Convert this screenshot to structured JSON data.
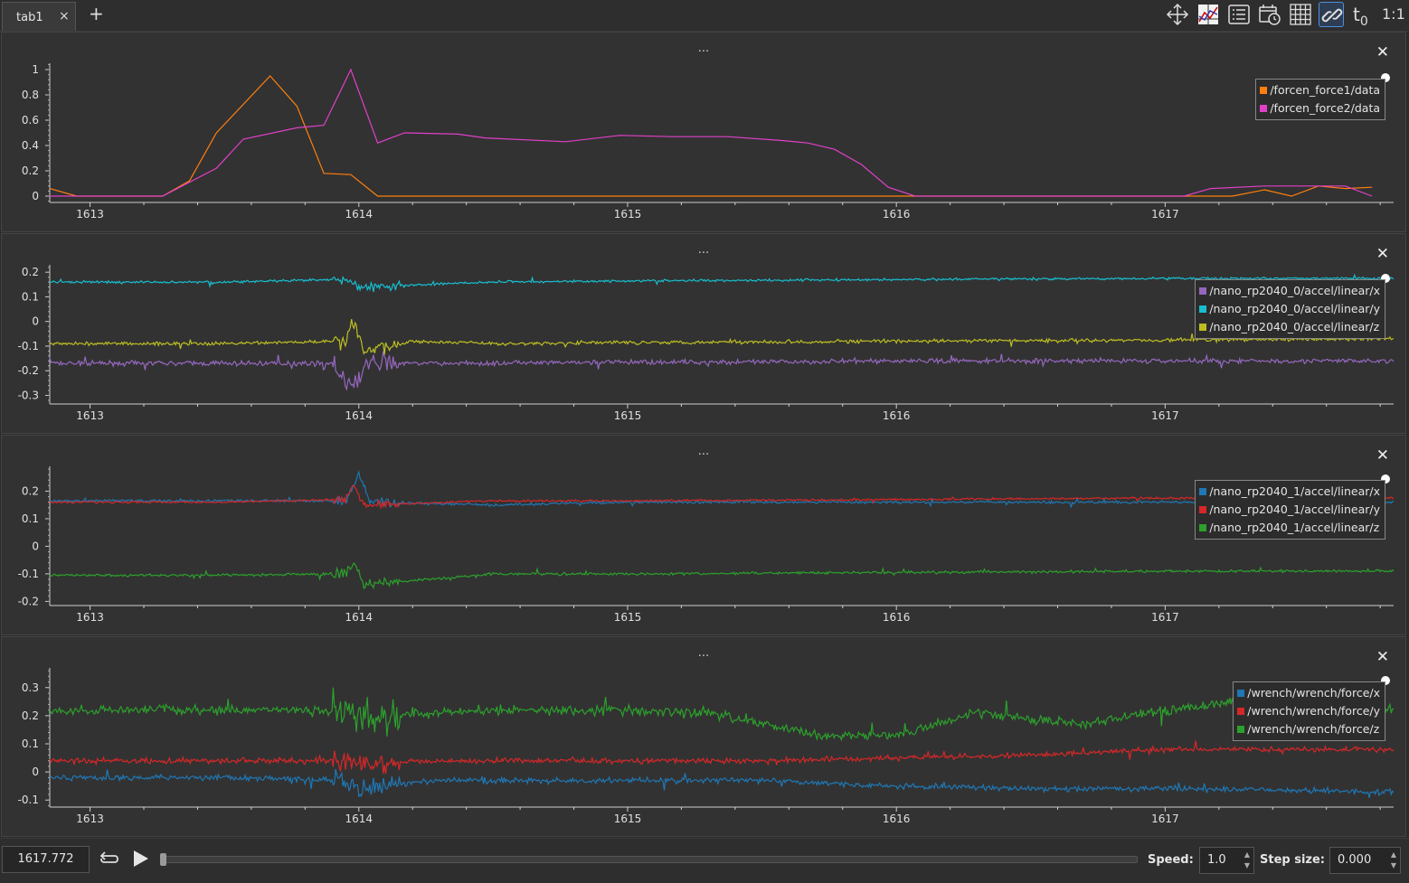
{
  "tab": {
    "label": "tab1",
    "close": "×",
    "add": "+"
  },
  "toolbar": {
    "icons": [
      "move-icon",
      "zoom-fit-icon",
      "list-icon",
      "calendar-clock-icon",
      "grid-icon",
      "link-icon"
    ],
    "time_offset_label": "t",
    "time_offset_sub": "0",
    "ratio_label": "1:1"
  },
  "panels": [
    {
      "menu": "...",
      "close": "✕",
      "legend": [
        {
          "label": "/forcen_force1/data",
          "color": "#ff7f0e"
        },
        {
          "label": "/forcen_force2/data",
          "color": "#e040c8"
        }
      ]
    },
    {
      "menu": "...",
      "close": "✕",
      "legend": [
        {
          "label": "/nano_rp2040_0/accel/linear/x",
          "color": "#9467bd"
        },
        {
          "label": "/nano_rp2040_0/accel/linear/y",
          "color": "#17becf"
        },
        {
          "label": "/nano_rp2040_0/accel/linear/z",
          "color": "#bcbd22"
        }
      ]
    },
    {
      "menu": "...",
      "close": "✕",
      "legend": [
        {
          "label": "/nano_rp2040_1/accel/linear/x",
          "color": "#1f77b4"
        },
        {
          "label": "/nano_rp2040_1/accel/linear/y",
          "color": "#d62728"
        },
        {
          "label": "/nano_rp2040_1/accel/linear/z",
          "color": "#2ca02c"
        }
      ]
    },
    {
      "menu": "...",
      "close": "✕",
      "legend": [
        {
          "label": "/wrench/wrench/force/x",
          "color": "#1f77b4"
        },
        {
          "label": "/wrench/wrench/force/y",
          "color": "#d62728"
        },
        {
          "label": "/wrench/wrench/force/z",
          "color": "#2ca02c"
        }
      ]
    }
  ],
  "chart_data": [
    {
      "type": "line",
      "xlim": [
        1612.85,
        1617.85
      ],
      "ylim": [
        -0.05,
        1.05
      ],
      "xticks": [
        1613,
        1614,
        1615,
        1616,
        1617
      ],
      "yticks": [
        0,
        0.2,
        0.4,
        0.6,
        0.8,
        1
      ],
      "ytick_labels": [
        "0",
        "0.2",
        "0.4",
        "0.6",
        "0.8",
        "1"
      ],
      "series": [
        {
          "name": "/forcen_force1/data",
          "color": "#ff7f0e",
          "noise": 0,
          "x": [
            1612.85,
            1612.95,
            1613.27,
            1613.37,
            1613.47,
            1613.67,
            1613.77,
            1613.87,
            1613.97,
            1614.07,
            1614.17,
            1617.15,
            1617.25,
            1617.37,
            1617.47,
            1617.57,
            1617.67,
            1617.77
          ],
          "y": [
            0.06,
            0,
            0,
            0.12,
            0.5,
            0.95,
            0.71,
            0.18,
            0.17,
            0,
            0,
            0,
            0,
            0.05,
            0,
            0.08,
            0.06,
            0.07
          ]
        },
        {
          "name": "/forcen_force2/data",
          "color": "#e040c8",
          "noise": 0,
          "x": [
            1612.85,
            1612.97,
            1613.27,
            1613.47,
            1613.57,
            1613.77,
            1613.87,
            1613.97,
            1614.07,
            1614.17,
            1614.37,
            1614.47,
            1614.77,
            1614.97,
            1615.17,
            1615.37,
            1615.57,
            1615.67,
            1615.77,
            1615.87,
            1615.97,
            1616.07,
            1617.07,
            1617.17,
            1617.37,
            1617.57,
            1617.67,
            1617.77
          ],
          "y": [
            0,
            0,
            0,
            0.22,
            0.45,
            0.54,
            0.56,
            1.0,
            0.42,
            0.5,
            0.49,
            0.46,
            0.43,
            0.48,
            0.47,
            0.47,
            0.44,
            0.42,
            0.37,
            0.25,
            0.07,
            0,
            0,
            0.06,
            0.08,
            0.08,
            0.08,
            0
          ]
        }
      ]
    },
    {
      "type": "line",
      "xlim": [
        1612.85,
        1617.85
      ],
      "ylim": [
        -0.335,
        0.23
      ],
      "xticks": [
        1613,
        1614,
        1615,
        1616,
        1617
      ],
      "yticks": [
        -0.3,
        -0.2,
        -0.1,
        0,
        0.1,
        0.2
      ],
      "ytick_labels": [
        "-0.3",
        "-0.2",
        "-0.1",
        "0",
        "0.1",
        "0.2"
      ],
      "series": [
        {
          "name": "/nano_rp2040_0/accel/linear/x",
          "color": "#9467bd",
          "noise": 0.008,
          "x": [
            1612.85,
            1613.5,
            1613.9,
            1613.97,
            1614.03,
            1614.5,
            1615,
            1615.5,
            1616,
            1616.5,
            1617,
            1617.85
          ],
          "y": [
            -0.17,
            -0.17,
            -0.17,
            -0.28,
            -0.17,
            -0.17,
            -0.165,
            -0.165,
            -0.16,
            -0.16,
            -0.16,
            -0.16
          ]
        },
        {
          "name": "/nano_rp2040_0/accel/linear/y",
          "color": "#17becf",
          "noise": 0.004,
          "x": [
            1612.85,
            1613.5,
            1613.95,
            1614,
            1614.5,
            1615,
            1616,
            1617,
            1617.85
          ],
          "y": [
            0.16,
            0.16,
            0.17,
            0.14,
            0.16,
            0.165,
            0.17,
            0.175,
            0.175
          ]
        },
        {
          "name": "/nano_rp2040_0/accel/linear/z",
          "color": "#bcbd22",
          "noise": 0.006,
          "x": [
            1612.85,
            1613.5,
            1613.95,
            1613.98,
            1614.02,
            1614.2,
            1614.5,
            1615,
            1616,
            1617,
            1617.85
          ],
          "y": [
            -0.09,
            -0.09,
            -0.08,
            0.0,
            -0.12,
            -0.08,
            -0.09,
            -0.085,
            -0.08,
            -0.075,
            -0.07
          ]
        }
      ]
    },
    {
      "type": "line",
      "xlim": [
        1612.85,
        1617.85
      ],
      "ylim": [
        -0.215,
        0.29
      ],
      "xticks": [
        1613,
        1614,
        1615,
        1616,
        1617
      ],
      "yticks": [
        -0.2,
        -0.1,
        0,
        0.1,
        0.2
      ],
      "ytick_labels": [
        "-0.2",
        "-0.1",
        "0",
        "0.1",
        "0.2"
      ],
      "series": [
        {
          "name": "/nano_rp2040_1/accel/linear/x",
          "color": "#1f77b4",
          "noise": 0.004,
          "x": [
            1612.85,
            1613.5,
            1613.95,
            1614,
            1614.05,
            1614.5,
            1615,
            1616,
            1617,
            1617.85
          ],
          "y": [
            0.165,
            0.165,
            0.165,
            0.25,
            0.16,
            0.15,
            0.16,
            0.16,
            0.16,
            0.16
          ]
        },
        {
          "name": "/nano_rp2040_1/accel/linear/y",
          "color": "#d62728",
          "noise": 0.003,
          "x": [
            1612.85,
            1613.5,
            1613.95,
            1613.98,
            1614.02,
            1614.5,
            1615,
            1616,
            1617,
            1617.85
          ],
          "y": [
            0.16,
            0.16,
            0.17,
            0.22,
            0.15,
            0.165,
            0.165,
            0.17,
            0.175,
            0.175
          ]
        },
        {
          "name": "/nano_rp2040_1/accel/linear/z",
          "color": "#2ca02c",
          "noise": 0.004,
          "x": [
            1612.85,
            1613.5,
            1613.95,
            1613.98,
            1614.02,
            1614.5,
            1615,
            1616,
            1617,
            1617.85
          ],
          "y": [
            -0.105,
            -0.105,
            -0.1,
            -0.06,
            -0.14,
            -0.1,
            -0.1,
            -0.095,
            -0.09,
            -0.09
          ]
        }
      ]
    },
    {
      "type": "line",
      "xlim": [
        1612.85,
        1617.85
      ],
      "ylim": [
        -0.125,
        0.37
      ],
      "xticks": [
        1613,
        1614,
        1615,
        1616,
        1617
      ],
      "yticks": [
        -0.1,
        0,
        0.1,
        0.2,
        0.3
      ],
      "ytick_labels": [
        "-0.1",
        "0",
        "0.1",
        "0.2",
        "0.3"
      ],
      "series": [
        {
          "name": "/wrench/wrench/force/x",
          "color": "#1f77b4",
          "noise": 0.008,
          "x": [
            1612.85,
            1613.5,
            1613.95,
            1614,
            1614.3,
            1615,
            1615.5,
            1616,
            1616.5,
            1617,
            1617.85
          ],
          "y": [
            -0.02,
            -0.02,
            -0.03,
            -0.06,
            -0.03,
            -0.03,
            -0.03,
            -0.05,
            -0.06,
            -0.06,
            -0.07
          ]
        },
        {
          "name": "/wrench/wrench/force/y",
          "color": "#d62728",
          "noise": 0.008,
          "x": [
            1612.85,
            1613.5,
            1613.95,
            1614,
            1614.3,
            1615,
            1615.5,
            1616,
            1616.5,
            1617,
            1617.85
          ],
          "y": [
            0.04,
            0.04,
            0.04,
            0.03,
            0.04,
            0.04,
            0.04,
            0.05,
            0.06,
            0.08,
            0.08
          ]
        },
        {
          "name": "/wrench/wrench/force/z",
          "color": "#2ca02c",
          "noise": 0.014,
          "x": [
            1612.85,
            1613.5,
            1613.95,
            1614.05,
            1614.5,
            1615,
            1615.3,
            1615.7,
            1616,
            1616.3,
            1616.7,
            1617,
            1617.5,
            1617.85
          ],
          "y": [
            0.22,
            0.22,
            0.22,
            0.2,
            0.22,
            0.22,
            0.21,
            0.13,
            0.13,
            0.21,
            0.17,
            0.22,
            0.27,
            0.22
          ]
        }
      ]
    }
  ],
  "bottom": {
    "time": "1617.772",
    "speed_label": "Speed:",
    "speed_value": "1.0",
    "step_label": "Step size:",
    "step_value": "0.000",
    "spin_up": "▲",
    "spin_down": "▼",
    "progress": 0
  }
}
